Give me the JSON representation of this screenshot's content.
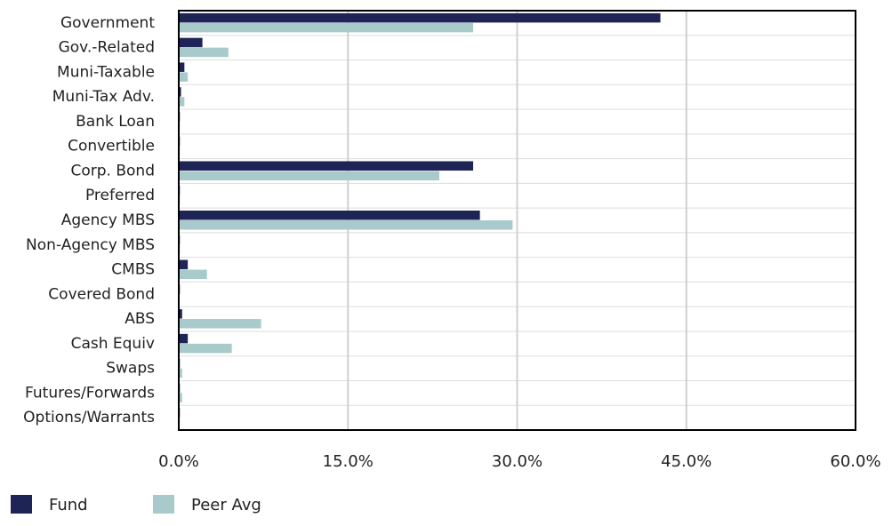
{
  "chart_data": {
    "type": "bar",
    "orientation": "horizontal",
    "categories": [
      "Government",
      "Gov.-Related",
      "Muni-Taxable",
      "Muni-Tax Adv.",
      "Bank Loan",
      "Convertible",
      "Corp. Bond",
      "Preferred",
      "Agency MBS",
      "Non-Agency MBS",
      "CMBS",
      "Covered Bond",
      "ABS",
      "Cash Equiv",
      "Swaps",
      "Futures/Forwards",
      "Options/Warrants"
    ],
    "series": [
      {
        "name": "Fund",
        "color": "#1f2456",
        "values": [
          42.7,
          2.1,
          0.5,
          0.2,
          0.1,
          0.1,
          26.1,
          0.1,
          26.7,
          0.1,
          0.8,
          0.1,
          0.3,
          0.8,
          0.1,
          0.1,
          0.1
        ]
      },
      {
        "name": "Peer Avg",
        "color": "#a8cacb",
        "values": [
          26.1,
          4.4,
          0.8,
          0.5,
          0.1,
          0.1,
          23.1,
          0.1,
          29.6,
          0.1,
          2.5,
          0,
          7.3,
          4.7,
          0.3,
          0.3,
          0.1
        ]
      }
    ],
    "xlim": [
      0,
      60
    ],
    "xticks": [
      {
        "value": 0,
        "label": "0.0%"
      },
      {
        "value": 15,
        "label": "15.0%"
      },
      {
        "value": 30,
        "label": "30.0%"
      },
      {
        "value": 45,
        "label": "45.0%"
      },
      {
        "value": 60,
        "label": "60.0%"
      }
    ],
    "grid": true,
    "legend": "bottom-left"
  }
}
